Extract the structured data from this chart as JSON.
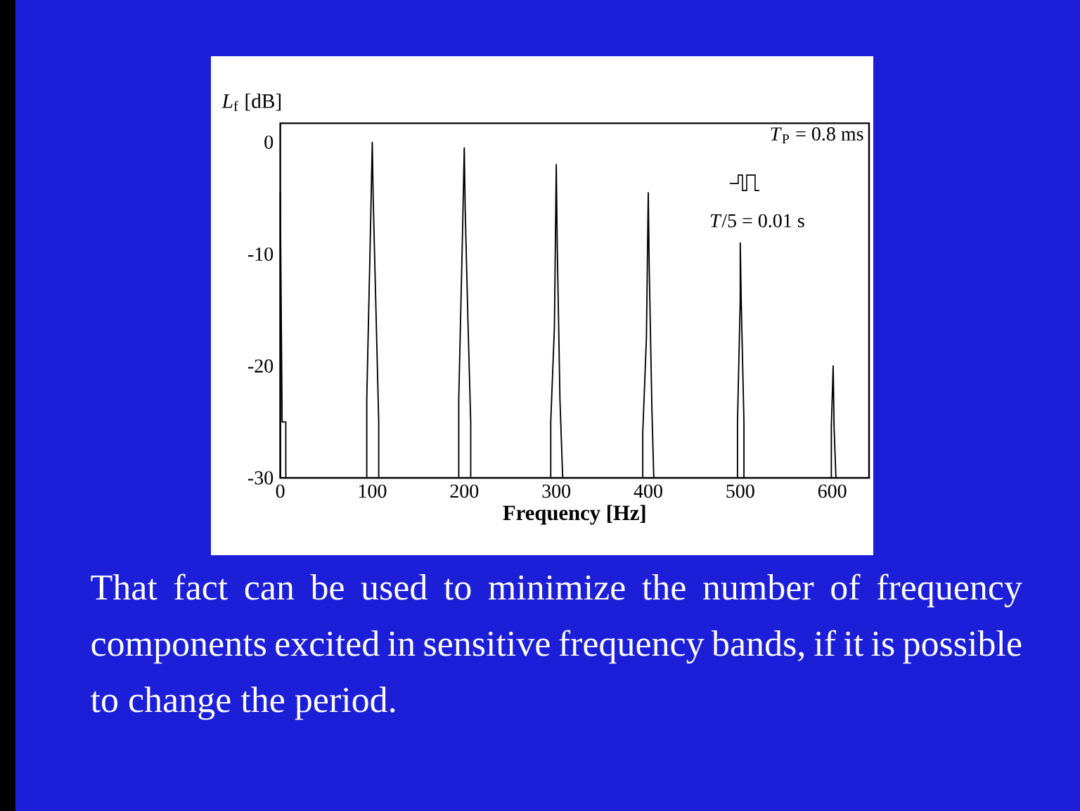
{
  "chart_data": {
    "type": "line",
    "xlabel": "Frequency [Hz]",
    "ylabel": "*L*$_{f}$ [dB]",
    "xlim": [
      0,
      640
    ],
    "ylim": [
      -30,
      1.7
    ],
    "xticks": [
      0,
      100,
      200,
      300,
      400,
      500,
      600
    ],
    "yticks": [
      -30,
      -20,
      -10,
      0
    ],
    "series": [
      {
        "color": "#000000",
        "x": [
          0,
          0,
          1,
          2,
          6,
          6,
          94,
          94,
          98,
          100,
          101,
          104,
          107,
          107,
          194,
          194,
          198,
          200,
          201,
          204,
          207,
          207,
          294,
          294,
          298,
          300,
          301,
          304,
          307,
          394,
          394,
          398,
          400,
          401,
          404,
          406,
          497,
          497,
          500,
          500,
          501,
          504,
          504,
          599,
          599,
          601,
          602,
          604
        ],
        "values": [
          -30,
          -4.5,
          -15,
          -25,
          -25,
          -30,
          -30,
          -23,
          -8,
          0,
          -5,
          -15,
          -25,
          -30,
          -30,
          -23,
          -8.5,
          -0.5,
          -6,
          -16,
          -25,
          -30,
          -30,
          -25,
          -16.5,
          -2,
          -9,
          -23,
          -30,
          -30,
          -26,
          -17.5,
          -4.5,
          -11,
          -24,
          -30,
          -30,
          -25,
          -14,
          -9,
          -14,
          -25,
          -30,
          -30,
          -25.5,
          -20,
          -25.5,
          -30
        ]
      }
    ],
    "annotations": [
      "*T*$_{P}$ = 0.8 ms",
      "*T*/5 = 0.01 s",
      "That fact can be used to minimize the number of frequency components excited in sensitive frequency bands, if it is possible to change the period."
    ]
  }
}
